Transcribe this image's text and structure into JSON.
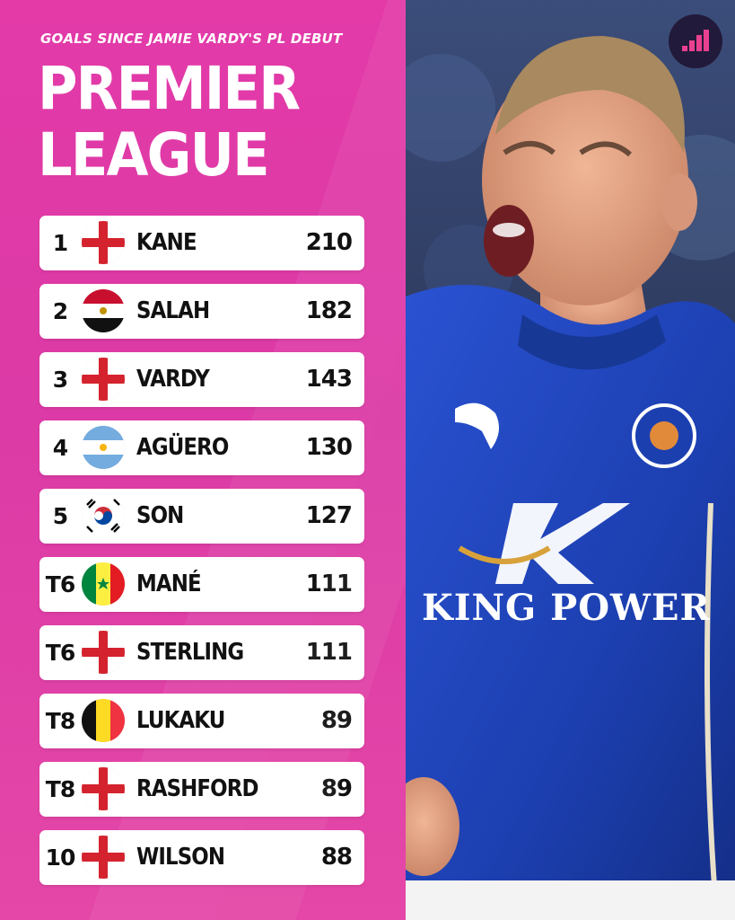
{
  "header": {
    "subtitle": "GOALS SINCE JAMIE VARDY'S PL DEBUT",
    "title_line1": "PREMIER",
    "title_line2": "LEAGUE"
  },
  "rows": [
    {
      "rank": "1",
      "flag": "england-flag-icon",
      "name": "KANE",
      "goals": "210"
    },
    {
      "rank": "2",
      "flag": "egypt-flag-icon",
      "name": "SALAH",
      "goals": "182"
    },
    {
      "rank": "3",
      "flag": "england-flag-icon",
      "name": "VARDY",
      "goals": "143"
    },
    {
      "rank": "4",
      "flag": "argentina-flag-icon",
      "name": "AGÜERO",
      "goals": "130"
    },
    {
      "rank": "5",
      "flag": "south-korea-flag-icon",
      "name": "SON",
      "goals": "127"
    },
    {
      "rank": "T6",
      "flag": "senegal-flag-icon",
      "name": "MANÉ",
      "goals": "111"
    },
    {
      "rank": "T6",
      "flag": "england-flag-icon",
      "name": "STERLING",
      "goals": "111"
    },
    {
      "rank": "T8",
      "flag": "belgium-flag-icon",
      "name": "LUKAKU",
      "goals": "89"
    },
    {
      "rank": "T8",
      "flag": "england-flag-icon",
      "name": "RASHFORD",
      "goals": "89"
    },
    {
      "rank": "10",
      "flag": "england-flag-icon",
      "name": "WILSON",
      "goals": "88"
    }
  ],
  "photo": {
    "shirt_sponsor": "KING POWER"
  },
  "colors": {
    "panel": "#e03aa7",
    "shirt": "#1c3fb0",
    "logo_bg": "#221a3a"
  }
}
